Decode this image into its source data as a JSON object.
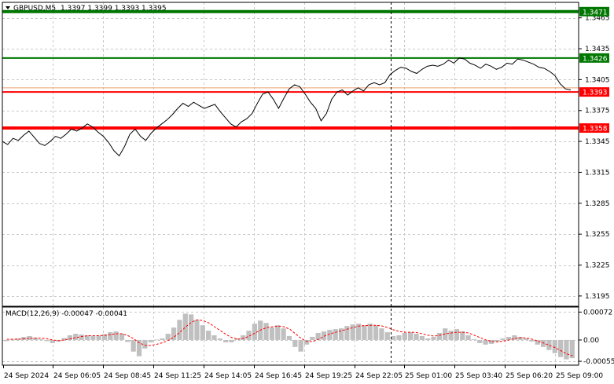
{
  "symbol": "GBPUSD,M5",
  "ohlc": "1.3397 1.3399 1.3393 1.3395",
  "macd_label": "MACD(12,26,9) -0.00047 -0.00041",
  "chart_data": [
    {
      "type": "line",
      "title": "GBPUSD,M5",
      "ylim": [
        1.3185,
        1.348
      ],
      "yticks": [
        "1.3465",
        "1.3435",
        "1.3405",
        "1.3375",
        "1.3345",
        "1.3315",
        "1.3285",
        "1.3255",
        "1.3225",
        "1.3195"
      ],
      "ytick_values": [
        1.3465,
        1.3435,
        1.3405,
        1.3375,
        1.3345,
        1.3315,
        1.3285,
        1.3255,
        1.3225,
        1.3195
      ],
      "xticks": [
        "24 Sep 2024",
        "24 Sep 06:05",
        "24 Sep 08:45",
        "24 Sep 11:25",
        "24 Sep 14:05",
        "24 Sep 16:45",
        "24 Sep 19:25",
        "24 Sep 22:05",
        "25 Sep 01:00",
        "25 Sep 03:40",
        "25 Sep 06:20",
        "25 Sep 09:00"
      ],
      "levels": [
        {
          "value": 1.3471,
          "label": "1.3471",
          "color": "#007700"
        },
        {
          "value": 1.3426,
          "label": "1.3426",
          "color": "#007700"
        },
        {
          "value": 1.3393,
          "label": "1.3393",
          "color": "#ff0000"
        },
        {
          "value": 1.3358,
          "label": "1.3358",
          "color": "#ff0000"
        }
      ],
      "extra_lines": [
        {
          "value": 1.3397,
          "color": "#e8a070"
        }
      ],
      "series": [
        {
          "values": [
            1.3345,
            1.3342,
            1.3348,
            1.3346,
            1.3351,
            1.3355,
            1.3349,
            1.3343,
            1.3341,
            1.3345,
            1.335,
            1.3348,
            1.3352,
            1.3357,
            1.3355,
            1.3358,
            1.3362,
            1.3359,
            1.3354,
            1.335,
            1.3344,
            1.3336,
            1.3331,
            1.334,
            1.3352,
            1.3357,
            1.335,
            1.3346,
            1.3353,
            1.3358,
            1.3362,
            1.3366,
            1.3371,
            1.3377,
            1.3382,
            1.3379,
            1.3383,
            1.338,
            1.3377,
            1.3379,
            1.3381,
            1.3374,
            1.3368,
            1.3362,
            1.3359,
            1.3364,
            1.3367,
            1.3372,
            1.3382,
            1.3391,
            1.3393,
            1.3386,
            1.3377,
            1.3387,
            1.3396,
            1.34,
            1.3398,
            1.3391,
            1.3383,
            1.3377,
            1.3365,
            1.3372,
            1.3386,
            1.3393,
            1.3395,
            1.339,
            1.3394,
            1.3397,
            1.3394,
            1.34,
            1.3402,
            1.34,
            1.3402,
            1.341,
            1.3414,
            1.3417,
            1.3416,
            1.3413,
            1.3411,
            1.3415,
            1.3418,
            1.3419,
            1.3418,
            1.342,
            1.3424,
            1.3421,
            1.3426,
            1.3425,
            1.3421,
            1.3419,
            1.3416,
            1.342,
            1.3418,
            1.3415,
            1.3417,
            1.3421,
            1.342,
            1.3425,
            1.3424,
            1.3422,
            1.342,
            1.3417,
            1.3416,
            1.3413,
            1.3409,
            1.3401,
            1.3396,
            1.3395
          ],
          "color": "#000000"
        }
      ]
    },
    {
      "type": "bar",
      "title": "MACD(12,26,9) -0.00047 -0.00041",
      "ylim": [
        -0.00065,
        0.00085
      ],
      "yticks": [
        "0.00072",
        "0.00",
        "-0.00055"
      ],
      "ytick_values": [
        0.00072,
        0.0,
        -0.00055
      ],
      "series": [
        {
          "name": "MACD",
          "color": "#c0c0c0",
          "values": [
            -3e-05,
            1e-05,
            4e-05,
            8e-05,
            0.0001,
            6e-05,
            2e-05,
            -3e-05,
            -8e-05,
            -4e-05,
            5e-05,
            0.00012,
            0.00016,
            0.00014,
            0.00012,
            0.0001,
            0.00011,
            0.00015,
            0.0002,
            0.00022,
            0.00016,
            -5e-05,
            -0.0003,
            -0.00042,
            -0.00022,
            -6e-05,
            1e-05,
            4e-05,
            0.00016,
            0.00032,
            0.00052,
            0.00068,
            0.00066,
            0.00052,
            0.00038,
            0.00024,
            0.00012,
            4e-05,
            -6e-05,
            -6e-05,
            4e-05,
            0.00012,
            0.00024,
            0.00042,
            0.0005,
            0.00044,
            0.00032,
            0.00038,
            0.0003,
            0.0001,
            -0.00018,
            -0.0003,
            -0.00012,
            8e-05,
            0.00018,
            0.00022,
            0.00026,
            0.00028,
            0.0003,
            0.00036,
            0.0004,
            0.00042,
            0.00038,
            0.00042,
            0.00038,
            0.0003,
            0.0002,
            0.0001,
            0.00012,
            0.00018,
            0.0002,
            0.00016,
            0.0001,
            4e-05,
            8e-05,
            0.00018,
            0.0003,
            0.00024,
            0.00028,
            0.00022,
            0.00012,
            2e-05,
            -8e-05,
            -0.00012,
            -0.0001,
            -4e-05,
            4e-05,
            8e-05,
            0.00012,
            8e-05,
            4e-05,
            -4e-05,
            -0.00012,
            -0.00018,
            -0.00026,
            -0.00034,
            -0.00044,
            -0.0005,
            -0.00047
          ]
        },
        {
          "name": "Signal",
          "color": "#ff0000",
          "values": [
            2e-05,
            2e-05,
            2e-05,
            3e-05,
            4e-05,
            5e-05,
            5e-05,
            3e-05,
            0.0,
            -2e-05,
            0.0,
            3e-05,
            6e-05,
            9e-05,
            0.00011,
            0.00011,
            0.00011,
            0.00012,
            0.00014,
            0.00016,
            0.00016,
            0.00011,
            3e-05,
            -8e-05,
            -0.00014,
            -0.00014,
            -0.00011,
            -7e-05,
            -1e-05,
            8e-05,
            0.0002,
            0.00034,
            0.00046,
            0.00052,
            0.0005,
            0.00044,
            0.00034,
            0.00024,
            0.00014,
            6e-05,
            2e-05,
            4e-05,
            0.0001,
            0.00018,
            0.00026,
            0.00032,
            0.00034,
            0.00036,
            0.00034,
            0.00028,
            0.00016,
            4e-05,
            -4e-05,
            -4e-05,
            2e-05,
            0.0001,
            0.00016,
            0.0002,
            0.00024,
            0.00028,
            0.00032,
            0.00036,
            0.00037,
            0.00038,
            0.00038,
            0.00036,
            0.00032,
            0.00026,
            0.00022,
            0.0002,
            0.0002,
            0.00019,
            0.00016,
            0.00012,
            0.0001,
            0.00012,
            0.00016,
            0.00018,
            0.0002,
            0.0002,
            0.00018,
            0.00012,
            6e-05,
            0.0,
            -4e-05,
            -5e-05,
            -3e-05,
            0.0,
            4e-05,
            6e-05,
            5e-05,
            2e-05,
            -3e-05,
            -8e-05,
            -0.00014,
            -0.0002,
            -0.00028,
            -0.00036,
            -0.00041
          ]
        }
      ]
    }
  ]
}
